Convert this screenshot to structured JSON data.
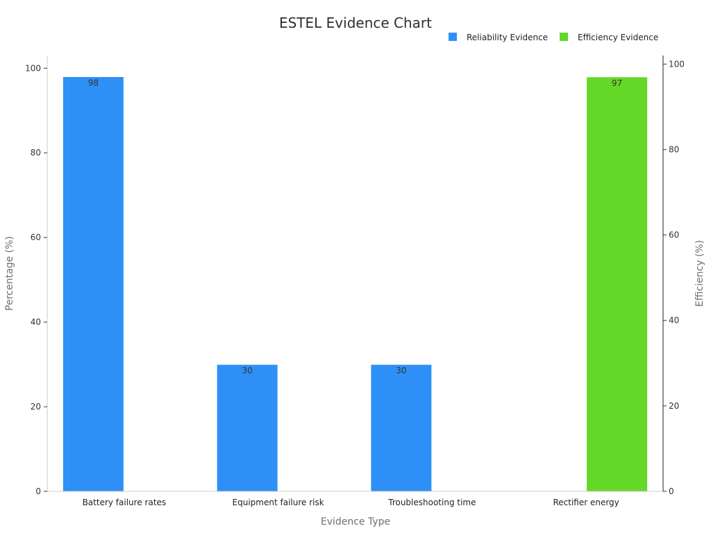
{
  "chart_data": {
    "type": "bar",
    "title": "ESTEL Evidence Chart",
    "xlabel": "Evidence Type",
    "ylabel": "Percentage (%)",
    "y2label": "Efficiency (%)",
    "categories": [
      "Battery failure rates",
      "Equipment failure risk",
      "Troubleshooting time",
      "Rectifier energy"
    ],
    "ylim": [
      0,
      103
    ],
    "y2lim": [
      0,
      102
    ],
    "yticks": [
      0,
      20,
      40,
      60,
      80,
      100
    ],
    "y2ticks": [
      0,
      20,
      40,
      60,
      80,
      100
    ],
    "legend_position": "top-right",
    "series": [
      {
        "name": "Reliability Evidence",
        "axis": "left",
        "color": "#2e90f6",
        "values": [
          98,
          30,
          30,
          null
        ],
        "labels": [
          "98",
          "30",
          "30",
          ""
        ]
      },
      {
        "name": "Efficiency Evidence",
        "axis": "right",
        "color": "#64d827",
        "values": [
          null,
          null,
          null,
          97
        ],
        "labels": [
          "",
          "",
          "",
          "97"
        ]
      }
    ]
  }
}
